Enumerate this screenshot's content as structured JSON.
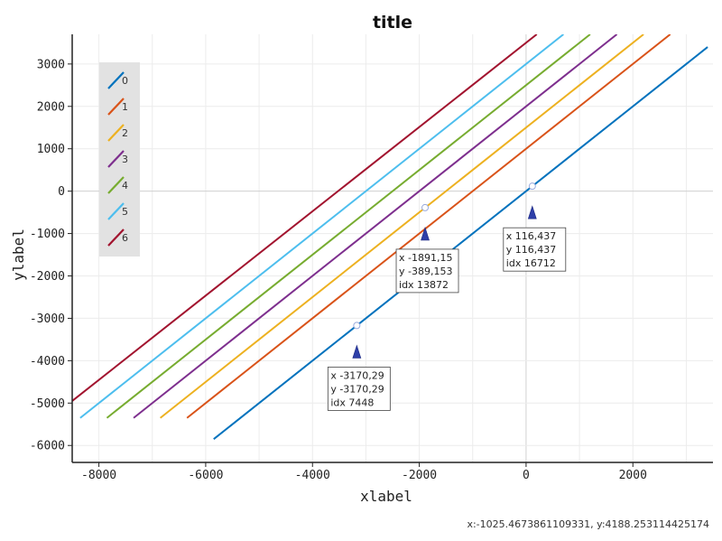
{
  "coord_readout": "x:-1025.4673861109331, y:4188.253114425174",
  "chart_data": {
    "type": "line",
    "title": "title",
    "xlabel": "xlabel",
    "ylabel": "ylabel",
    "xlim": [
      -8500,
      3500
    ],
    "ylim": [
      -6400,
      3700
    ],
    "xticks": [
      -8000,
      -6000,
      -4000,
      -2000,
      0,
      2000
    ],
    "yticks": [
      3000,
      2000,
      1000,
      0,
      -1000,
      -2000,
      -3000,
      -4000,
      -5000,
      -6000
    ],
    "grid": true,
    "legend_position": "top-left",
    "series": [
      {
        "name": "0",
        "color": "#0072bd",
        "x": [
          -5850,
          3400
        ],
        "y": [
          -5850,
          3400
        ]
      },
      {
        "name": "1",
        "color": "#d95319",
        "x": [
          -6350,
          2700
        ],
        "y": [
          -5350,
          3700
        ]
      },
      {
        "name": "2",
        "color": "#edb120",
        "x": [
          -6850,
          2200
        ],
        "y": [
          -5350,
          3700
        ]
      },
      {
        "name": "3",
        "color": "#7e2f8e",
        "x": [
          -7350,
          1700
        ],
        "y": [
          -5350,
          3700
        ]
      },
      {
        "name": "4",
        "color": "#77ac30",
        "x": [
          -7850,
          1200
        ],
        "y": [
          -5350,
          3700
        ]
      },
      {
        "name": "5",
        "color": "#4dbeee",
        "x": [
          -8350,
          700
        ],
        "y": [
          -5350,
          3700
        ]
      },
      {
        "name": "6",
        "color": "#a2142f",
        "x": [
          -8500,
          200
        ],
        "y": [
          -4950,
          3700
        ]
      }
    ],
    "annotations": [
      {
        "x": -3170.29,
        "y": -3170.29,
        "lines": [
          "x -3170,29",
          "y -3170,29",
          "idx 7448"
        ]
      },
      {
        "x": -1891.15,
        "y": -389.153,
        "lines": [
          "x -1891,15",
          "y -389,153",
          "idx 13872"
        ]
      },
      {
        "x": 116.437,
        "y": 116.437,
        "lines": [
          "x 116,437",
          "y 116,437",
          "idx 16712"
        ]
      }
    ]
  }
}
